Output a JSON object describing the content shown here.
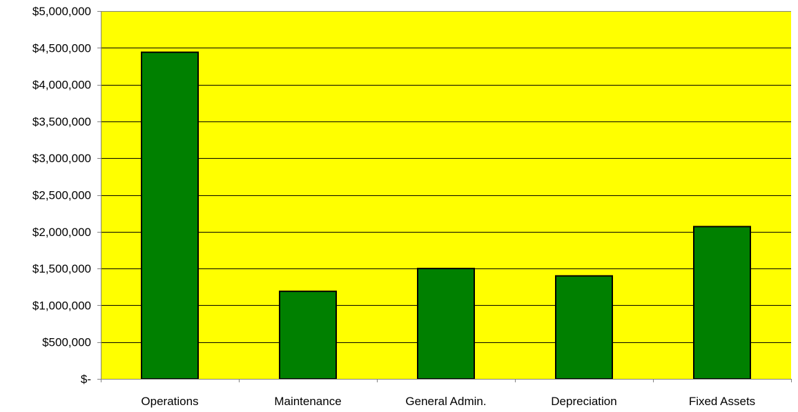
{
  "chart_data": {
    "type": "bar",
    "title": "",
    "xlabel": "",
    "ylabel": "",
    "categories": [
      "Operations",
      "Maintenance",
      "General Admin.",
      "Depreciation",
      "Fixed Assets"
    ],
    "values": [
      4440000,
      1190000,
      1500000,
      1400000,
      2070000
    ],
    "ylim": [
      0,
      5000000
    ],
    "y_ticks": [
      0,
      500000,
      1000000,
      1500000,
      2000000,
      2500000,
      3000000,
      3500000,
      4000000,
      4500000,
      5000000
    ],
    "y_tick_labels": [
      "$-",
      "$500,000",
      "$1,000,000",
      "$1,500,000",
      "$2,000,000",
      "$2,500,000",
      "$3,000,000",
      "$3,500,000",
      "$4,000,000",
      "$4,500,000",
      "$5,000,000"
    ],
    "grid": true,
    "legend": "none",
    "colors": {
      "plot_background": "#FFFF00",
      "bar_fill": "#008000",
      "bar_stroke": "#000000",
      "gridline": "#000000",
      "axis": "#808080"
    }
  }
}
